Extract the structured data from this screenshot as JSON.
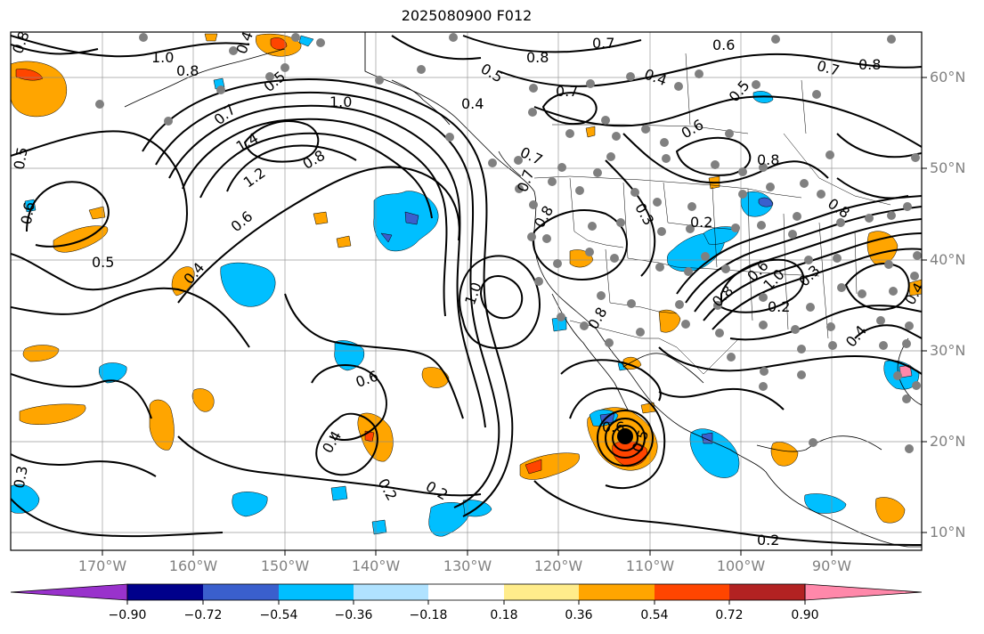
{
  "title": "2025080900 F012",
  "lat_labels": [
    "60°N",
    "50°N",
    "40°N",
    "30°N",
    "20°N",
    "10°N"
  ],
  "lon_labels": [
    "170°W",
    "160°W",
    "150°W",
    "140°W",
    "130°W",
    "120°W",
    "110°W",
    "100°W",
    "90°W"
  ],
  "colorbar": {
    "colors": [
      "#9932CC",
      "#00008B",
      "#3A5FCD",
      "#00BFFF",
      "#B0E2FF",
      "#FFFFFF",
      "#FFEC8B",
      "#FFA500",
      "#FF4500",
      "#B22222",
      "#FF88AA"
    ],
    "ticks": [
      "−0.90",
      "−0.72",
      "−0.54",
      "−0.36",
      "−0.18",
      "0.18",
      "0.36",
      "0.54",
      "0.72",
      "0.90"
    ]
  },
  "contour_labels": [
    "0.8",
    "1.0",
    "0.8",
    "0.4",
    "0.5",
    "0.7",
    "0.7",
    "0.8",
    "0.6",
    "0.7",
    "0.8",
    "0.5",
    "0.4",
    "0.7",
    "0.4",
    "0.5",
    "0.6",
    "0.8",
    "1.0",
    "0.7",
    "1.4",
    "1.2",
    "0.8",
    "0.6",
    "0.5",
    "0.6",
    "0.5",
    "0.4",
    "0.7",
    "0.8",
    "0.3",
    "0.2",
    "0.8",
    "0.6",
    "1.0",
    "0.8",
    "0.3",
    "0.2",
    "0.4",
    "0.4",
    "0.8",
    "1.0",
    "0.6",
    "0.4",
    "0.2",
    "0.2",
    "0.3",
    "0.2",
    "0.6",
    "0.5"
  ]
}
